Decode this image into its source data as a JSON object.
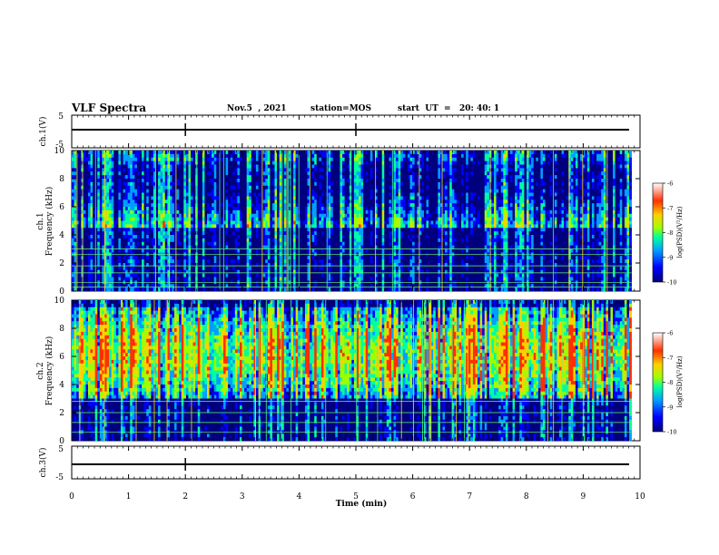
{
  "header": {
    "title": "VLF Spectra",
    "date": "Nov.5  , 2021",
    "station": "station=MOS",
    "start_ut": "start  UT  =   20: 40: 1"
  },
  "chart_data": [
    {
      "type": "line",
      "panel": "waveform-top",
      "ylabel": "ch.1(V)",
      "ylim": [
        -5,
        5
      ],
      "yticks": [
        "5",
        "-5"
      ],
      "xlim": [
        0,
        10
      ],
      "x": [
        0,
        1.1,
        2.0,
        3.0,
        5.0,
        6.0,
        7.2,
        8.0,
        9.8
      ],
      "y": [
        0,
        0,
        0,
        0,
        0,
        0,
        0,
        0,
        0
      ]
    },
    {
      "type": "heatmap",
      "panel": "spectrogram-ch1",
      "ylabel": "ch.1\nFrequency  (kHz)",
      "ylim": [
        0,
        10
      ],
      "yticks": [
        "0",
        "2",
        "4",
        "6",
        "8",
        "10"
      ],
      "xlim": [
        0,
        9.85
      ],
      "colorbar": {
        "label": "log(PSD)(V²/Hz)",
        "range": [
          -10,
          -6
        ],
        "ticks": [
          "-6",
          "-7",
          "-8",
          "-9",
          "-10"
        ]
      },
      "description_values": {
        "tone_lines_khz": [
          0.3,
          0.6,
          1.3,
          1.8,
          2.6,
          3.0
        ]
      }
    },
    {
      "type": "heatmap",
      "panel": "spectrogram-ch2",
      "ylabel": "ch.2\nFrequency  (kHz)",
      "ylim": [
        0,
        10
      ],
      "yticks": [
        "0",
        "2",
        "4",
        "6",
        "8",
        "10"
      ],
      "xlim": [
        0,
        9.85
      ],
      "colorbar": {
        "label": "log(PSD)(V²/Hz)",
        "range": [
          -10,
          -6
        ],
        "ticks": [
          "-6",
          "-7",
          "-8",
          "-9",
          "-10"
        ]
      },
      "description_values": {
        "tone_lines_khz": [
          0.6,
          1.3,
          2.0,
          2.8
        ]
      }
    },
    {
      "type": "line",
      "panel": "waveform-bottom",
      "ylabel": "ch.3(V)",
      "ylim": [
        -5,
        5
      ],
      "yticks": [
        "5",
        "-5"
      ],
      "xlim": [
        0,
        10
      ],
      "x": [
        0,
        2.0,
        4.0,
        5.0,
        6.0,
        8.0,
        9.8
      ],
      "y": [
        0,
        0,
        0,
        0,
        0,
        0,
        0
      ]
    }
  ],
  "xaxis": {
    "label": "Time  (min)",
    "ticks": [
      "0",
      "1",
      "2",
      "3",
      "4",
      "5",
      "6",
      "7",
      "8",
      "9",
      "10"
    ],
    "range": [
      0,
      10
    ]
  },
  "colors": {
    "colormap": [
      "#00007f",
      "#0000ff",
      "#00a0ff",
      "#00ffa0",
      "#a0ff00",
      "#ffd000",
      "#ff3000",
      "#ffffff"
    ]
  }
}
